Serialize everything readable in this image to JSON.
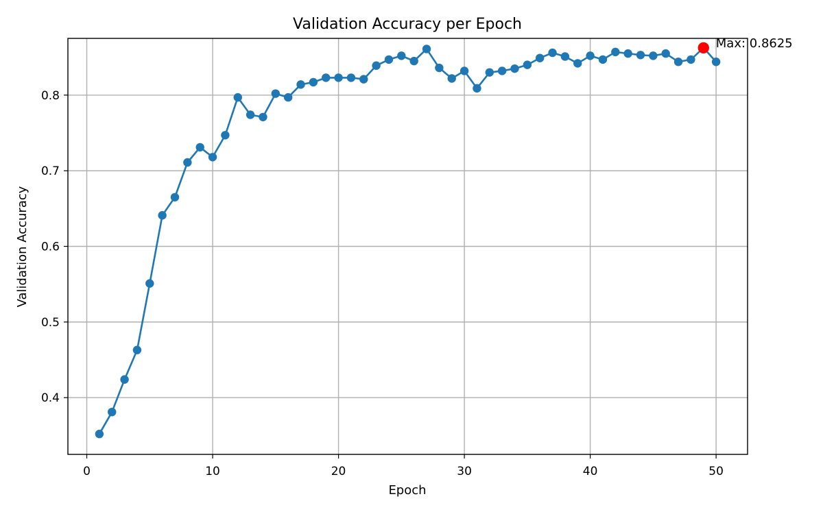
{
  "chart_data": {
    "type": "line",
    "title": "Validation Accuracy per Epoch",
    "xlabel": "Epoch",
    "ylabel": "Validation Accuracy",
    "xlim": [
      -1.5,
      52.5
    ],
    "ylim": [
      0.325,
      0.875
    ],
    "xticks": [
      0,
      10,
      20,
      30,
      40,
      50
    ],
    "yticks": [
      0.4,
      0.5,
      0.6,
      0.7,
      0.8
    ],
    "grid": true,
    "colors": {
      "series": "#1f77b4",
      "highlight": "#ff0000"
    },
    "series": [
      {
        "x": [
          1,
          2,
          3,
          4,
          5,
          6,
          7,
          8,
          9,
          10,
          11,
          12,
          13,
          14,
          15,
          16,
          17,
          18,
          19,
          20,
          21,
          22,
          23,
          24,
          25,
          26,
          27,
          28,
          29,
          30,
          31,
          32,
          33,
          34,
          35,
          36,
          37,
          38,
          39,
          40,
          41,
          42,
          43,
          44,
          45,
          46,
          47,
          48,
          49,
          50
        ],
        "values": [
          0.352,
          0.381,
          0.424,
          0.463,
          0.551,
          0.641,
          0.665,
          0.711,
          0.731,
          0.718,
          0.747,
          0.797,
          0.774,
          0.771,
          0.802,
          0.797,
          0.814,
          0.817,
          0.823,
          0.823,
          0.823,
          0.821,
          0.839,
          0.847,
          0.852,
          0.845,
          0.861,
          0.836,
          0.822,
          0.832,
          0.809,
          0.83,
          0.832,
          0.835,
          0.84,
          0.849,
          0.856,
          0.851,
          0.842,
          0.852,
          0.847,
          0.857,
          0.855,
          0.853,
          0.852,
          0.855,
          0.844,
          0.847,
          0.8625,
          0.844
        ]
      }
    ],
    "highlight": {
      "x": 49,
      "y": 0.8625,
      "label": "Max: 0.8625"
    }
  }
}
